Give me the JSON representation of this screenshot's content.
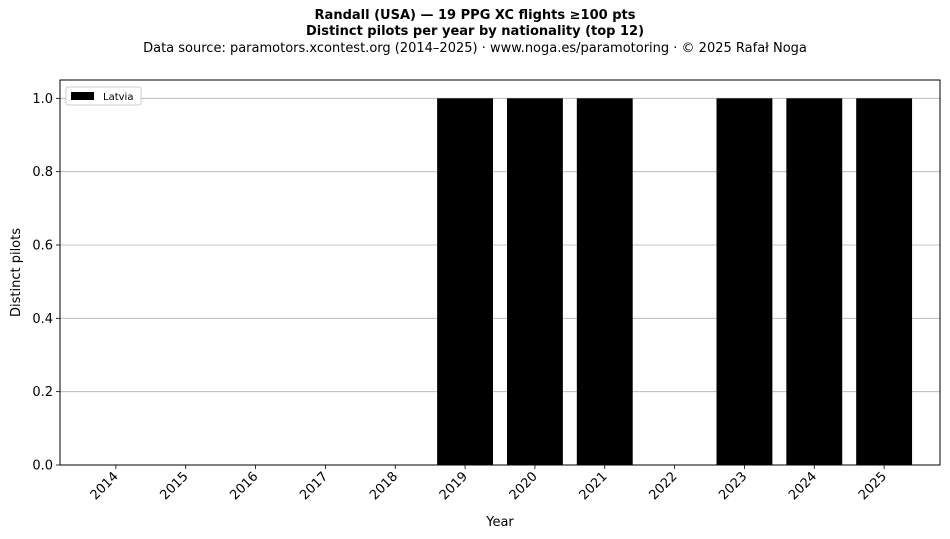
{
  "title": {
    "line1": "Randall (USA)  —  19 PPG XC flights ≥100 pts",
    "line2": "Distinct pilots per year by nationality (top 12)",
    "line3": "Data source: paramotors.xcontest.org (2014–2025)  ·  www.noga.es/paramotoring  ·  © 2025 Rafał Noga"
  },
  "chart_data": {
    "type": "bar",
    "title": "Randall (USA)  —  19 PPG XC flights ≥100 pts",
    "subtitle": "Distinct pilots per year by nationality (top 12)",
    "xlabel": "Year",
    "ylabel": "Distinct pilots",
    "categories": [
      "2014",
      "2015",
      "2016",
      "2017",
      "2018",
      "2019",
      "2020",
      "2021",
      "2022",
      "2023",
      "2024",
      "2025"
    ],
    "series": [
      {
        "name": "Latvia",
        "color": "#000000",
        "values": [
          0,
          0,
          0,
          0,
          0,
          1,
          1,
          1,
          0,
          1,
          1,
          1
        ]
      }
    ],
    "ylim": [
      0,
      1.05
    ],
    "yticks": [
      "0.0",
      "0.2",
      "0.4",
      "0.6",
      "0.8",
      "1.0"
    ],
    "grid": "y",
    "legend": "top-left"
  }
}
